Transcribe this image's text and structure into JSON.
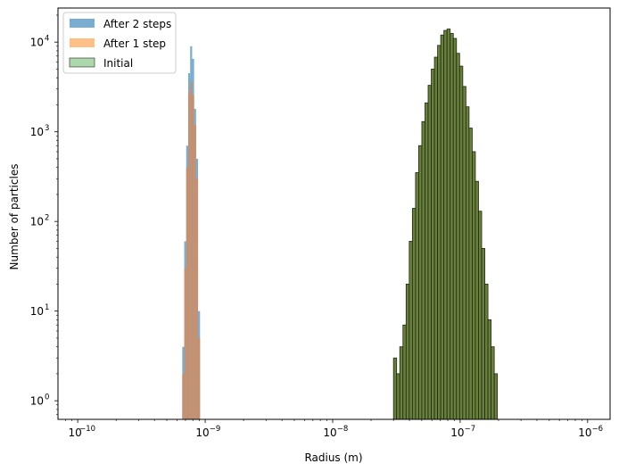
{
  "chart_data": {
    "type": "histogram",
    "xscale": "log",
    "yscale": "log",
    "xlabel": "Radius (m)",
    "ylabel": "Number of particles",
    "xlim": [
      7e-11,
      1.5e-06
    ],
    "ylim": [
      0.62,
      24000
    ],
    "x_ticks": [
      {
        "value": 1e-10,
        "base": "10",
        "exp": "−10"
      },
      {
        "value": 1e-09,
        "base": "10",
        "exp": "−9"
      },
      {
        "value": 1e-08,
        "base": "10",
        "exp": "−8"
      },
      {
        "value": 1e-07,
        "base": "10",
        "exp": "−7"
      },
      {
        "value": 1e-06,
        "base": "10",
        "exp": "−6"
      }
    ],
    "y_ticks": [
      {
        "value": 1,
        "base": "10",
        "exp": "0"
      },
      {
        "value": 10,
        "base": "10",
        "exp": "1"
      },
      {
        "value": 100,
        "base": "10",
        "exp": "2"
      },
      {
        "value": 1000,
        "base": "10",
        "exp": "3"
      },
      {
        "value": 10000,
        "base": "10",
        "exp": "4"
      }
    ],
    "legend": {
      "position": "top-left",
      "entries": [
        {
          "label": "After 2 steps",
          "color": "#1f77b4",
          "alpha": 0.6,
          "edge": "none"
        },
        {
          "label": "After 1 step",
          "color": "#ff7f0e",
          "alpha": 0.5,
          "edge": "none"
        },
        {
          "label": "Initial",
          "color": "#2ca02c",
          "alpha": 0.4,
          "edge": "#000000"
        }
      ]
    },
    "series": [
      {
        "name": "Initial",
        "color": "#2ca02c",
        "alpha": 0.4,
        "overlay": "#6b7f3c",
        "edge": "#1a2a10",
        "bin_log_start": -7.5229,
        "bin_log_width": 0.0247,
        "values": [
          3,
          2,
          4,
          7,
          20,
          60,
          140,
          350,
          700,
          1300,
          2100,
          3300,
          5000,
          6800,
          9200,
          12000,
          13500,
          14000,
          12500,
          11000,
          7500,
          5400,
          3200,
          1900,
          1100,
          600,
          280,
          130,
          50,
          20,
          8,
          4,
          2
        ]
      },
      {
        "name": "After 2 steps",
        "color": "#1f77b4",
        "alpha": 0.6,
        "bin_log_start": -9.18,
        "bin_log_width": 0.0155,
        "values": [
          4,
          60,
          700,
          4500,
          9000,
          6500,
          1800,
          500,
          10
        ]
      },
      {
        "name": "After 1 step",
        "color": "#ff7f0e",
        "alpha": 0.5,
        "bin_log_start": -9.18,
        "bin_log_width": 0.0155,
        "values": [
          2,
          30,
          400,
          2800,
          3600,
          2600,
          1200,
          300,
          5
        ]
      }
    ]
  }
}
